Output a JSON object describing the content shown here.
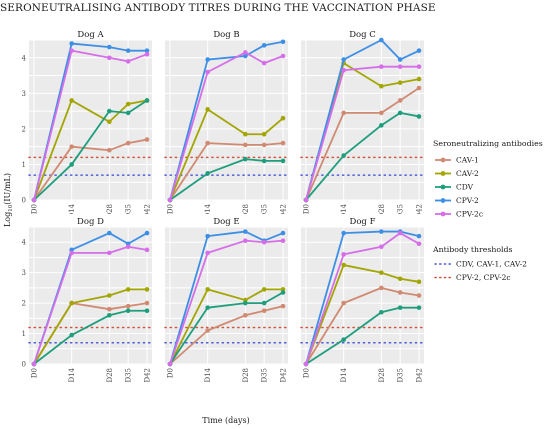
{
  "title": "SERONEUTRALISING ANTIBODY TITRES DURING THE VACCINATION PHASE",
  "chart_data": {
    "type": "line",
    "title": "SERONEUTRALISING ANTIBODY TITRES DURING THE VACCINATION PHASE",
    "xlabel": "Time (days)",
    "ylabel": "Log10(IU/mL)",
    "ylabel_main": "Log",
    "ylabel_sub": "10",
    "ylabel_unit": "(IU/mL)",
    "x_ticks": [
      "D0",
      "D14",
      "D28",
      "D35",
      "D42"
    ],
    "x_days": [
      0,
      14,
      28,
      35,
      42
    ],
    "ylim": [
      0,
      4.5
    ],
    "y_ticks": [
      "0",
      "1",
      "2",
      "3",
      "4"
    ],
    "grid": true,
    "legend_position": "right",
    "series_legend_title": "Seroneutralizing antibodies",
    "threshold_legend_title": "Antibody thresholds",
    "series_meta": [
      {
        "name": "CAV-1",
        "color": "#d08a72"
      },
      {
        "name": "CAV-2",
        "color": "#a3a500"
      },
      {
        "name": "CDV",
        "color": "#1f9e7e"
      },
      {
        "name": "CPV-2",
        "color": "#3d8fe6"
      },
      {
        "name": "CPV-2c",
        "color": "#d56ee8"
      }
    ],
    "thresholds": [
      {
        "name": "CDV, CAV-1, CAV-2",
        "value": 0.7,
        "color": "#4a5ad8"
      },
      {
        "name": "CPV-2, CPV-2c",
        "value": 1.2,
        "color": "#d0533c"
      }
    ],
    "panels": [
      {
        "name": "Dog A",
        "series": [
          {
            "name": "CAV-1",
            "values": [
              0,
              1.5,
              1.4,
              1.6,
              1.7
            ]
          },
          {
            "name": "CAV-2",
            "values": [
              0,
              2.8,
              2.2,
              2.7,
              2.8
            ]
          },
          {
            "name": "CDV",
            "values": [
              0,
              1.0,
              2.5,
              2.45,
              2.8
            ]
          },
          {
            "name": "CPV-2",
            "values": [
              0,
              4.4,
              4.3,
              4.2,
              4.2
            ]
          },
          {
            "name": "CPV-2c",
            "values": [
              0,
              4.2,
              4.0,
              3.9,
              4.1
            ]
          }
        ]
      },
      {
        "name": "Dog B",
        "series": [
          {
            "name": "CAV-1",
            "values": [
              0,
              1.6,
              1.55,
              1.55,
              1.6
            ]
          },
          {
            "name": "CAV-2",
            "values": [
              0,
              2.55,
              1.85,
              1.85,
              2.3
            ]
          },
          {
            "name": "CDV",
            "values": [
              0,
              0.75,
              1.15,
              1.1,
              1.1
            ]
          },
          {
            "name": "CPV-2",
            "values": [
              0,
              3.95,
              4.05,
              4.35,
              4.45
            ]
          },
          {
            "name": "CPV-2c",
            "values": [
              0,
              3.6,
              4.15,
              3.85,
              4.05
            ]
          }
        ]
      },
      {
        "name": "Dog C",
        "series": [
          {
            "name": "CAV-1",
            "values": [
              0,
              2.45,
              2.45,
              2.8,
              3.15
            ]
          },
          {
            "name": "CAV-2",
            "values": [
              0,
              3.85,
              3.2,
              3.3,
              3.4
            ]
          },
          {
            "name": "CDV",
            "values": [
              0,
              1.25,
              2.1,
              2.45,
              2.35
            ]
          },
          {
            "name": "CPV-2",
            "values": [
              0,
              3.95,
              4.5,
              3.95,
              4.2
            ]
          },
          {
            "name": "CPV-2c",
            "values": [
              0,
              3.65,
              3.75,
              3.75,
              3.75
            ]
          }
        ]
      },
      {
        "name": "Dog D",
        "series": [
          {
            "name": "CAV-1",
            "values": [
              0,
              2.0,
              1.8,
              1.9,
              2.0
            ]
          },
          {
            "name": "CAV-2",
            "values": [
              0,
              2.0,
              2.25,
              2.45,
              2.45
            ]
          },
          {
            "name": "CDV",
            "values": [
              0,
              0.95,
              1.6,
              1.75,
              1.75
            ]
          },
          {
            "name": "CPV-2",
            "values": [
              0,
              3.75,
              4.3,
              3.95,
              4.3
            ]
          },
          {
            "name": "CPV-2c",
            "values": [
              0,
              3.65,
              3.65,
              3.85,
              3.75
            ]
          }
        ]
      },
      {
        "name": "Dog E",
        "series": [
          {
            "name": "CAV-1",
            "values": [
              0,
              1.1,
              1.6,
              1.75,
              1.9
            ]
          },
          {
            "name": "CAV-2",
            "values": [
              0,
              2.45,
              2.1,
              2.45,
              2.45
            ]
          },
          {
            "name": "CDV",
            "values": [
              0,
              1.85,
              2.0,
              2.0,
              2.35
            ]
          },
          {
            "name": "CPV-2",
            "values": [
              0,
              4.2,
              4.35,
              4.05,
              4.3
            ]
          },
          {
            "name": "CPV-2c",
            "values": [
              0,
              3.65,
              4.05,
              4.0,
              4.05
            ]
          }
        ]
      },
      {
        "name": "Dog F",
        "series": [
          {
            "name": "CAV-1",
            "values": [
              0,
              2.0,
              2.5,
              2.35,
              2.25
            ]
          },
          {
            "name": "CAV-2",
            "values": [
              0,
              3.25,
              3.0,
              2.8,
              2.7
            ]
          },
          {
            "name": "CDV",
            "values": [
              0,
              0.8,
              1.7,
              1.85,
              1.85
            ]
          },
          {
            "name": "CPV-2",
            "values": [
              0,
              4.3,
              4.35,
              4.35,
              4.2
            ]
          },
          {
            "name": "CPV-2c",
            "values": [
              0,
              3.6,
              3.85,
              4.3,
              3.95
            ]
          }
        ]
      }
    ]
  }
}
